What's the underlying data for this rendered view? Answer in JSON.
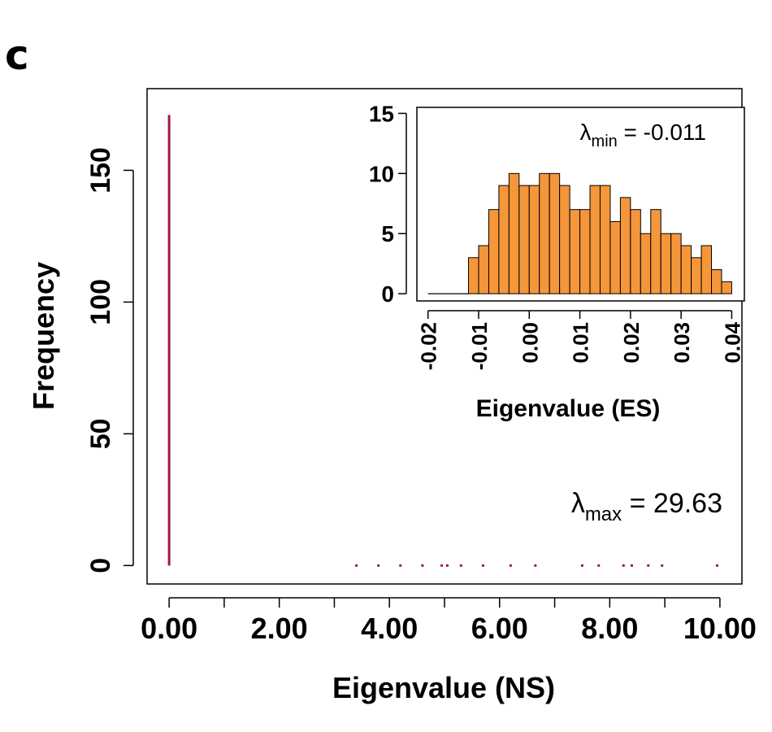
{
  "panel_label": "c",
  "chart_data": [
    {
      "id": "main",
      "type": "histogram",
      "xlabel": "Eigenvalue (NS)",
      "ylabel": "Frequency",
      "xlim": [
        -0.4,
        10.4
      ],
      "ylim": [
        -7,
        181
      ],
      "xticks": [
        0,
        1,
        2,
        3,
        4,
        5,
        6,
        7,
        8,
        9,
        10
      ],
      "xtick_labels": [
        "0.00",
        "",
        "2.00",
        "",
        "4.00",
        "",
        "6.00",
        "",
        "8.00",
        "",
        "10.00"
      ],
      "yticks": [
        0,
        50,
        100,
        150
      ],
      "ytick_labels": [
        "0",
        "50",
        "100",
        "150"
      ],
      "color": "#a31a3a",
      "bins": [
        {
          "x": 0.0,
          "count": 171
        },
        {
          "x": 3.4,
          "count": 1
        },
        {
          "x": 3.8,
          "count": 1
        },
        {
          "x": 4.2,
          "count": 1
        },
        {
          "x": 4.6,
          "count": 1
        },
        {
          "x": 4.95,
          "count": 1
        },
        {
          "x": 5.05,
          "count": 1
        },
        {
          "x": 5.3,
          "count": 1
        },
        {
          "x": 5.7,
          "count": 1
        },
        {
          "x": 6.2,
          "count": 1
        },
        {
          "x": 6.65,
          "count": 1
        },
        {
          "x": 7.5,
          "count": 1
        },
        {
          "x": 7.8,
          "count": 1
        },
        {
          "x": 8.25,
          "count": 1
        },
        {
          "x": 8.4,
          "count": 1
        },
        {
          "x": 8.7,
          "count": 1
        },
        {
          "x": 8.95,
          "count": 1
        },
        {
          "x": 9.95,
          "count": 1
        }
      ],
      "annotation": {
        "symbol": "λ",
        "sub": "max",
        "text": " = 29.63"
      }
    },
    {
      "id": "inset",
      "type": "histogram",
      "xlabel": "Eigenvalue (ES)",
      "ylabel": "",
      "xlim": [
        -0.0222,
        0.0425
      ],
      "ylim": [
        -0.6,
        15.5
      ],
      "xticks": [
        -0.02,
        -0.01,
        0.0,
        0.01,
        0.02,
        0.03,
        0.04
      ],
      "xtick_labels": [
        "-0.02",
        "-0.01",
        "0.00",
        "0.01",
        "0.02",
        "0.03",
        "0.04"
      ],
      "yticks": [
        0,
        5,
        10,
        15
      ],
      "ytick_labels": [
        "0",
        "5",
        "10",
        "15"
      ],
      "color": "#f5963a",
      "bin_start": -0.012,
      "bin_width": 0.002,
      "counts": [
        3,
        4,
        7,
        9,
        10,
        9,
        9,
        10,
        10,
        9,
        7,
        7,
        9,
        9,
        6,
        8,
        7,
        5,
        7,
        5,
        5,
        4,
        3,
        4,
        2,
        1
      ],
      "empty_range": [
        -0.02,
        -0.012
      ],
      "annotation": {
        "symbol": "λ",
        "sub": "min",
        "text": " = -0.011"
      }
    }
  ]
}
